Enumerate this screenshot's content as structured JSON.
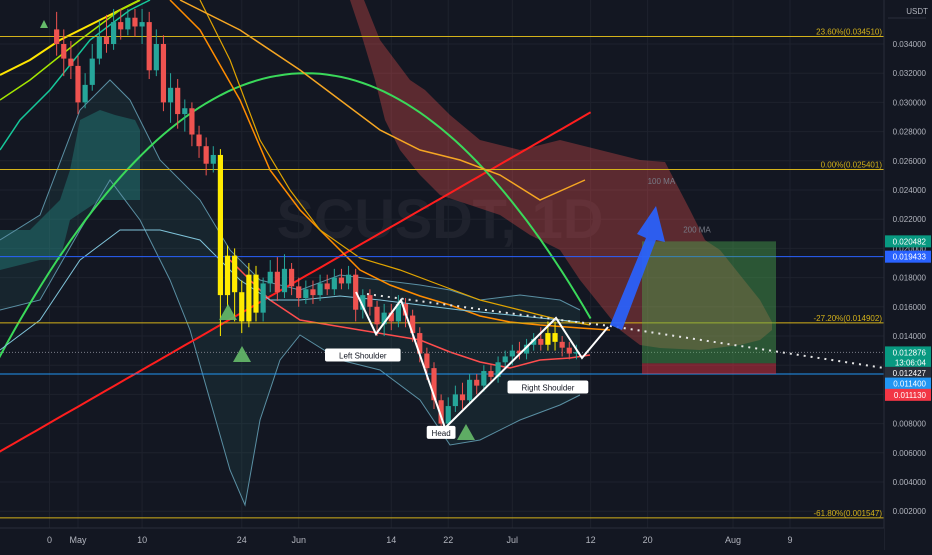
{
  "chart_data": {
    "type": "candlestick",
    "title": "",
    "watermark": "SCUSDT, 1D",
    "currency_label": "USDT",
    "y_axis": {
      "min": 0.0,
      "max": 0.0365,
      "ticks": [
        "0.034000",
        "0.032000",
        "0.030000",
        "0.028000",
        "0.026000",
        "0.024000",
        "0.022000",
        "0.020000",
        "0.018000",
        "0.016000",
        "0.014000",
        "0.012000",
        "0.010000",
        "0.008000",
        "0.006000",
        "0.004000",
        "0.002000"
      ],
      "tick_values": [
        0.034,
        0.032,
        0.03,
        0.028,
        0.026,
        0.024,
        0.022,
        0.02,
        0.018,
        0.016,
        0.014,
        0.012,
        0.01,
        0.008,
        0.006,
        0.004,
        0.002
      ]
    },
    "x_axis": {
      "ticks": [
        {
          "label": "0",
          "day": -4
        },
        {
          "label": "May",
          "day": 0
        },
        {
          "label": "10",
          "day": 9
        },
        {
          "label": "24",
          "day": 23
        },
        {
          "label": "Jun",
          "day": 31
        },
        {
          "label": "14",
          "day": 44
        },
        {
          "label": "22",
          "day": 52
        },
        {
          "label": "Jul",
          "day": 61
        },
        {
          "label": "12",
          "day": 72
        },
        {
          "label": "20",
          "day": 80
        },
        {
          "label": "Aug",
          "day": 92
        },
        {
          "label": "9",
          "day": 100
        }
      ]
    },
    "fib_levels": [
      {
        "label": "23.60%(0.034510)",
        "value": 0.03451
      },
      {
        "label": "0.00%(0.025401)",
        "value": 0.025401
      },
      {
        "label": "-27.20%(0.014902)",
        "value": 0.014902
      },
      {
        "label": "-61.80%(0.001547)",
        "value": 0.001547
      }
    ],
    "horizontal_lines": [
      {
        "value": 0.019433,
        "color": "#2962ff"
      },
      {
        "value": 0.0114,
        "color": "#2196f3"
      }
    ],
    "price_badges": [
      {
        "label": "0.020482",
        "value": 0.020482,
        "color": "#089981"
      },
      {
        "label": "0.019433",
        "value": 0.019433,
        "color": "#2962ff"
      },
      {
        "label": "0.012876",
        "value": 0.012876,
        "color": "#089981"
      },
      {
        "label": "13:06:04",
        "value": 0.012176,
        "color": "#089981"
      },
      {
        "label": "0.012427",
        "value": 0.011476,
        "color": "#2a2e39"
      },
      {
        "label": "0.011400",
        "value": 0.01074,
        "color": "#2196f3"
      },
      {
        "label": "0.011130",
        "value": 0.00997,
        "color": "#f23645"
      }
    ],
    "ma_labels": [
      {
        "label": "100 MA",
        "day": 80,
        "value": 0.0244
      },
      {
        "label": "200 MA",
        "day": 85,
        "value": 0.0211
      }
    ],
    "pattern_labels": [
      {
        "label": "Left Shoulder",
        "day": 40,
        "value": 0.0126
      },
      {
        "label": "Head",
        "day": 51,
        "value": 0.0073
      },
      {
        "label": "Right Shoulder",
        "day": 66,
        "value": 0.0104
      }
    ],
    "candles": [
      {
        "day": -3,
        "o": 0.035,
        "c": 0.034,
        "h": 0.0362,
        "l": 0.0332
      },
      {
        "day": -2,
        "o": 0.034,
        "c": 0.033,
        "h": 0.035,
        "l": 0.0318
      },
      {
        "day": -1,
        "o": 0.033,
        "c": 0.0325,
        "h": 0.0342,
        "l": 0.0316
      },
      {
        "day": 0,
        "o": 0.0325,
        "c": 0.03,
        "h": 0.0332,
        "l": 0.0292
      },
      {
        "day": 1,
        "o": 0.03,
        "c": 0.0312,
        "h": 0.032,
        "l": 0.0296
      },
      {
        "day": 2,
        "o": 0.0312,
        "c": 0.033,
        "h": 0.034,
        "l": 0.0308
      },
      {
        "day": 3,
        "o": 0.033,
        "c": 0.0345,
        "h": 0.0356,
        "l": 0.0326
      },
      {
        "day": 4,
        "o": 0.0345,
        "c": 0.034,
        "h": 0.036,
        "l": 0.0334
      },
      {
        "day": 5,
        "o": 0.034,
        "c": 0.0355,
        "h": 0.0364,
        "l": 0.0336
      },
      {
        "day": 6,
        "o": 0.0355,
        "c": 0.035,
        "h": 0.0364,
        "l": 0.0343
      },
      {
        "day": 7,
        "o": 0.035,
        "c": 0.0358,
        "h": 0.0364,
        "l": 0.0346
      },
      {
        "day": 8,
        "o": 0.0358,
        "c": 0.0352,
        "h": 0.0364,
        "l": 0.0345
      },
      {
        "day": 9,
        "o": 0.0352,
        "c": 0.0355,
        "h": 0.0364,
        "l": 0.034
      },
      {
        "day": 10,
        "o": 0.0355,
        "c": 0.0322,
        "h": 0.0362,
        "l": 0.0316
      },
      {
        "day": 11,
        "o": 0.0322,
        "c": 0.034,
        "h": 0.035,
        "l": 0.0318
      },
      {
        "day": 12,
        "o": 0.034,
        "c": 0.03,
        "h": 0.0346,
        "l": 0.0294
      },
      {
        "day": 13,
        "o": 0.03,
        "c": 0.031,
        "h": 0.032,
        "l": 0.0286
      },
      {
        "day": 14,
        "o": 0.031,
        "c": 0.0292,
        "h": 0.0316,
        "l": 0.0282
      },
      {
        "day": 15,
        "o": 0.0292,
        "c": 0.0296,
        "h": 0.0302,
        "l": 0.028
      },
      {
        "day": 16,
        "o": 0.0296,
        "c": 0.0278,
        "h": 0.03,
        "l": 0.027
      },
      {
        "day": 17,
        "o": 0.0278,
        "c": 0.027,
        "h": 0.0284,
        "l": 0.0262
      },
      {
        "day": 18,
        "o": 0.027,
        "c": 0.0258,
        "h": 0.0276,
        "l": 0.025
      },
      {
        "day": 19,
        "o": 0.0258,
        "c": 0.0264,
        "h": 0.027,
        "l": 0.0252
      },
      {
        "day": 20,
        "o": 0.0264,
        "c": 0.0168,
        "h": 0.0268,
        "l": 0.014
      },
      {
        "day": 21,
        "o": 0.0168,
        "c": 0.0195,
        "h": 0.0202,
        "l": 0.016
      },
      {
        "day": 22,
        "o": 0.0195,
        "c": 0.017,
        "h": 0.02,
        "l": 0.015
      },
      {
        "day": 23,
        "o": 0.017,
        "c": 0.015,
        "h": 0.0178,
        "l": 0.0142
      },
      {
        "day": 24,
        "o": 0.015,
        "c": 0.0182,
        "h": 0.019,
        "l": 0.0146
      },
      {
        "day": 25,
        "o": 0.0182,
        "c": 0.0156,
        "h": 0.0188,
        "l": 0.015
      },
      {
        "day": 26,
        "o": 0.0156,
        "c": 0.0176,
        "h": 0.018,
        "l": 0.015
      },
      {
        "day": 27,
        "o": 0.0176,
        "c": 0.0184,
        "h": 0.0192,
        "l": 0.017
      },
      {
        "day": 28,
        "o": 0.0184,
        "c": 0.017,
        "h": 0.0194,
        "l": 0.0164
      },
      {
        "day": 29,
        "o": 0.017,
        "c": 0.0186,
        "h": 0.0196,
        "l": 0.0166
      },
      {
        "day": 30,
        "o": 0.0186,
        "c": 0.0174,
        "h": 0.019,
        "l": 0.0168
      },
      {
        "day": 31,
        "o": 0.0174,
        "c": 0.0166,
        "h": 0.018,
        "l": 0.016
      },
      {
        "day": 32,
        "o": 0.0166,
        "c": 0.0172,
        "h": 0.0178,
        "l": 0.0162
      },
      {
        "day": 33,
        "o": 0.0172,
        "c": 0.0168,
        "h": 0.0178,
        "l": 0.0162
      },
      {
        "day": 34,
        "o": 0.0168,
        "c": 0.0176,
        "h": 0.0182,
        "l": 0.0164
      },
      {
        "day": 35,
        "o": 0.0176,
        "c": 0.0172,
        "h": 0.0182,
        "l": 0.0168
      },
      {
        "day": 36,
        "o": 0.0172,
        "c": 0.018,
        "h": 0.0186,
        "l": 0.0168
      },
      {
        "day": 37,
        "o": 0.018,
        "c": 0.0176,
        "h": 0.0186,
        "l": 0.0172
      },
      {
        "day": 38,
        "o": 0.0176,
        "c": 0.0182,
        "h": 0.0188,
        "l": 0.0172
      },
      {
        "day": 39,
        "o": 0.0182,
        "c": 0.0158,
        "h": 0.0186,
        "l": 0.015
      },
      {
        "day": 40,
        "o": 0.0158,
        "c": 0.0168,
        "h": 0.0172,
        "l": 0.0152
      },
      {
        "day": 41,
        "o": 0.0168,
        "c": 0.016,
        "h": 0.0172,
        "l": 0.0154
      },
      {
        "day": 42,
        "o": 0.016,
        "c": 0.0148,
        "h": 0.0164,
        "l": 0.014
      },
      {
        "day": 43,
        "o": 0.0148,
        "c": 0.0156,
        "h": 0.0162,
        "l": 0.014
      },
      {
        "day": 44,
        "o": 0.0156,
        "c": 0.015,
        "h": 0.0162,
        "l": 0.0144
      },
      {
        "day": 45,
        "o": 0.015,
        "c": 0.0162,
        "h": 0.0168,
        "l": 0.0146
      },
      {
        "day": 46,
        "o": 0.0162,
        "c": 0.0154,
        "h": 0.0166,
        "l": 0.0146
      },
      {
        "day": 47,
        "o": 0.0154,
        "c": 0.0142,
        "h": 0.0158,
        "l": 0.0136
      },
      {
        "day": 48,
        "o": 0.0142,
        "c": 0.0128,
        "h": 0.0146,
        "l": 0.0122
      },
      {
        "day": 49,
        "o": 0.0128,
        "c": 0.0118,
        "h": 0.0132,
        "l": 0.011
      },
      {
        "day": 50,
        "o": 0.0118,
        "c": 0.0096,
        "h": 0.0122,
        "l": 0.009
      },
      {
        "day": 51,
        "o": 0.0096,
        "c": 0.008,
        "h": 0.01,
        "l": 0.0072
      },
      {
        "day": 52,
        "o": 0.008,
        "c": 0.0092,
        "h": 0.0098,
        "l": 0.0076
      },
      {
        "day": 53,
        "o": 0.0092,
        "c": 0.01,
        "h": 0.0106,
        "l": 0.0088
      },
      {
        "day": 54,
        "o": 0.01,
        "c": 0.0096,
        "h": 0.0108,
        "l": 0.009
      },
      {
        "day": 55,
        "o": 0.0096,
        "c": 0.011,
        "h": 0.0114,
        "l": 0.0094
      },
      {
        "day": 56,
        "o": 0.011,
        "c": 0.0106,
        "h": 0.0114,
        "l": 0.01
      },
      {
        "day": 57,
        "o": 0.0106,
        "c": 0.0116,
        "h": 0.012,
        "l": 0.0102
      },
      {
        "day": 58,
        "o": 0.0116,
        "c": 0.0112,
        "h": 0.012,
        "l": 0.0108
      },
      {
        "day": 59,
        "o": 0.0112,
        "c": 0.0122,
        "h": 0.0126,
        "l": 0.0108
      },
      {
        "day": 60,
        "o": 0.0122,
        "c": 0.0126,
        "h": 0.013,
        "l": 0.0118
      },
      {
        "day": 61,
        "o": 0.0126,
        "c": 0.013,
        "h": 0.0134,
        "l": 0.012
      },
      {
        "day": 62,
        "o": 0.013,
        "c": 0.0128,
        "h": 0.0136,
        "l": 0.0124
      },
      {
        "day": 63,
        "o": 0.0128,
        "c": 0.0134,
        "h": 0.0138,
        "l": 0.0124
      },
      {
        "day": 64,
        "o": 0.0134,
        "c": 0.0138,
        "h": 0.0142,
        "l": 0.013
      },
      {
        "day": 65,
        "o": 0.0138,
        "c": 0.0134,
        "h": 0.0146,
        "l": 0.013
      },
      {
        "day": 66,
        "o": 0.0134,
        "c": 0.0142,
        "h": 0.015,
        "l": 0.013
      },
      {
        "day": 67,
        "o": 0.0142,
        "c": 0.0136,
        "h": 0.015,
        "l": 0.013
      },
      {
        "day": 68,
        "o": 0.0136,
        "c": 0.0132,
        "h": 0.014,
        "l": 0.0126
      },
      {
        "day": 69,
        "o": 0.0132,
        "c": 0.0128,
        "h": 0.0136,
        "l": 0.0124
      },
      {
        "day": 70,
        "o": 0.0128,
        "c": 0.0129,
        "h": 0.0134,
        "l": 0.0124
      }
    ],
    "yellow_candle_days": [
      20,
      21,
      22,
      23,
      24,
      25,
      66,
      67
    ]
  }
}
